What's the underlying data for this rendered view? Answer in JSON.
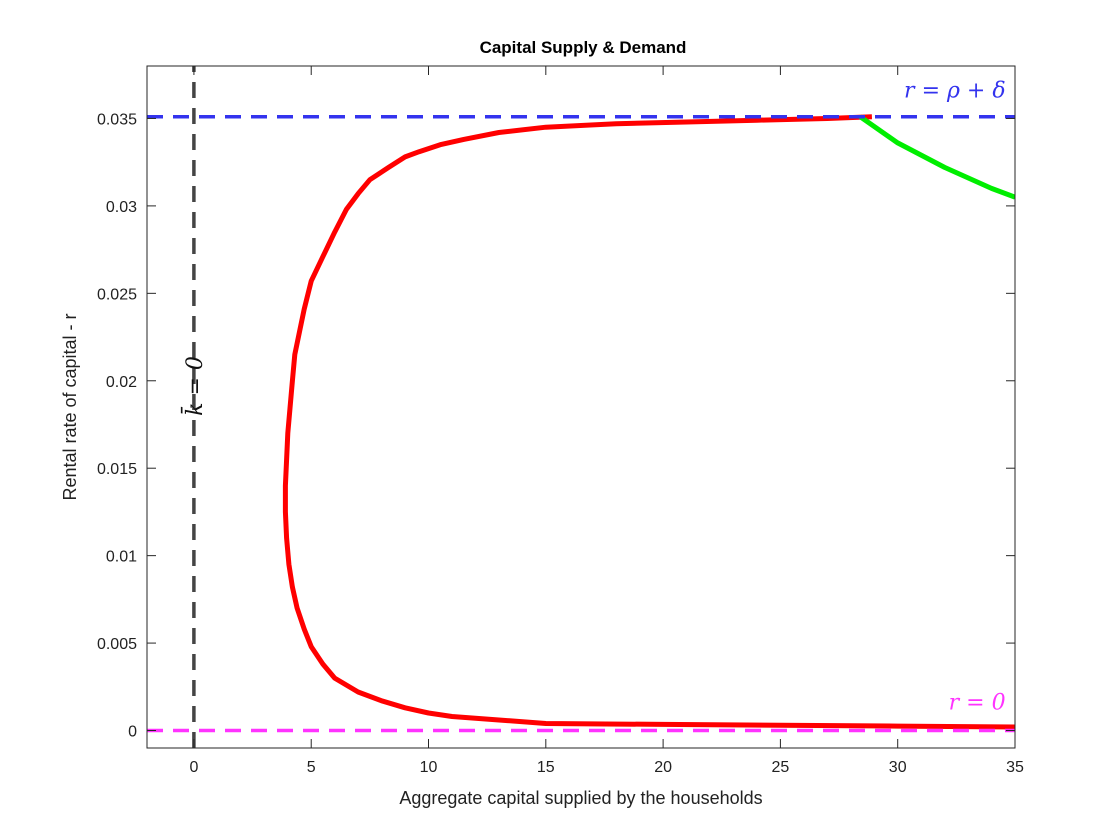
{
  "chart_data": {
    "type": "line",
    "title": "Capital Supply & Demand",
    "xlabel": "Aggregate capital supplied by the households",
    "ylabel": "Rental rate of capital - r",
    "xlim": [
      -2,
      35
    ],
    "ylim": [
      -0.001,
      0.038
    ],
    "xticks": [
      0,
      5,
      10,
      15,
      20,
      25,
      30,
      35
    ],
    "yticks": [
      0,
      0.005,
      0.01,
      0.015,
      0.02,
      0.025,
      0.03,
      0.035
    ],
    "ytick_labels": [
      "0",
      "0.005",
      "0.01",
      "0.015",
      "0.02",
      "0.025",
      "0.03",
      "0.035"
    ],
    "grid": false,
    "series": [
      {
        "color": "#ff0000",
        "style": "solid",
        "x": [
          28.9,
          27,
          24,
          21,
          18,
          15,
          13,
          11.5,
          10.5,
          9.6,
          9,
          8.3,
          7.5,
          7,
          6.5,
          6,
          5.5,
          5,
          4.7,
          4.5,
          4.3,
          4.2,
          4.1,
          4.0,
          3.95,
          3.9,
          3.9,
          3.95,
          4.05,
          4.2,
          4.4,
          4.7,
          5,
          5.5,
          6,
          7,
          8,
          9,
          10,
          11,
          13,
          15,
          20,
          25,
          30,
          35
        ],
        "y": [
          0.0351,
          0.035,
          0.0349,
          0.0348,
          0.0347,
          0.0345,
          0.0342,
          0.0338,
          0.0335,
          0.0331,
          0.0328,
          0.0322,
          0.0315,
          0.0307,
          0.0298,
          0.0285,
          0.0271,
          0.0257,
          0.0241,
          0.0228,
          0.0215,
          0.02,
          0.0185,
          0.017,
          0.0155,
          0.014,
          0.0125,
          0.011,
          0.0095,
          0.0082,
          0.007,
          0.0058,
          0.0048,
          0.0038,
          0.003,
          0.0022,
          0.0017,
          0.0013,
          0.001,
          0.0008,
          0.0006,
          0.0004,
          0.00035,
          0.0003,
          0.00025,
          0.0002
        ]
      },
      {
        "color": "#00ee00",
        "style": "solid",
        "x": [
          28.4,
          30,
          32,
          34,
          35
        ],
        "y": [
          0.0351,
          0.0336,
          0.0322,
          0.031,
          0.0305
        ]
      },
      {
        "color": "#3333ee",
        "style": "dashed",
        "x": [
          -2,
          35
        ],
        "y": [
          0.0351,
          0.0351
        ]
      },
      {
        "color": "#ff33ff",
        "style": "dashed",
        "x": [
          -2,
          35
        ],
        "y": [
          0,
          0
        ]
      },
      {
        "color": "#444444",
        "style": "dashed",
        "x": [
          0,
          0
        ],
        "y": [
          -0.001,
          0.038
        ]
      }
    ],
    "annotations": [
      {
        "text": "r = ρ + δ",
        "color": "#3333ee",
        "x": 34.6,
        "y": 0.0362,
        "anchor": "end",
        "rotate": 0
      },
      {
        "text": "r = 0",
        "color": "#ff33ff",
        "x": 34.6,
        "y": 0.0012,
        "anchor": "end",
        "rotate": 0
      },
      {
        "text": "k̄ = 0",
        "color": "#111111",
        "x": 0.35,
        "y": 0.0197,
        "anchor": "middle",
        "rotate": -90
      }
    ]
  }
}
